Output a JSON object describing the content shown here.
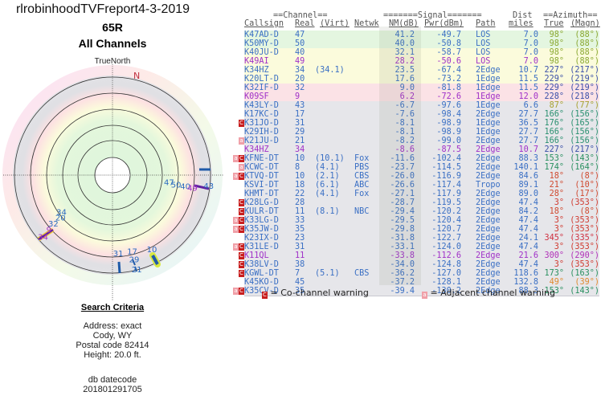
{
  "report": {
    "title": "rlrobinhoodTVFreport4-3-2019",
    "antenna_id": "65R",
    "subtitle": "All Channels",
    "north_label": "TrueNorth",
    "compass_n": "N"
  },
  "criteria": {
    "heading": "Search Criteria",
    "lines": [
      "Address: exact",
      "Cody, WY",
      "Postal code 82414",
      "Height: 20.0 ft."
    ],
    "db_label": "db datecode",
    "db_value": "201801291705"
  },
  "table": {
    "group_headers": {
      "channel": "==Channel==",
      "signal": "=======Signal=======",
      "dist": "Dist",
      "azimuth": "==Azimuth=="
    },
    "columns": [
      "Callsign",
      "Real",
      "(Virt)",
      "Netwk",
      "NM(dB)",
      "Pwr(dBm)",
      "Path",
      "miles",
      "True",
      "(Magn)"
    ],
    "rows": [
      {
        "callsign": "K47AD-D",
        "real": "47",
        "virt": "",
        "netwk": "",
        "nm": "41.2",
        "pwr": "-49.7",
        "path": "LOS",
        "dist": "7.0",
        "true": "98°",
        "magn": "(88°)",
        "band": "green",
        "tc": "#3a6fc4",
        "ac": "#8aa832",
        "warn": ""
      },
      {
        "callsign": "K50MY-D",
        "real": "50",
        "virt": "",
        "netwk": "",
        "nm": "40.0",
        "pwr": "-50.8",
        "path": "LOS",
        "dist": "7.0",
        "true": "98°",
        "magn": "(88°)",
        "band": "green",
        "tc": "#3a6fc4",
        "ac": "#8aa832",
        "warn": ""
      },
      {
        "callsign": "K40JU-D",
        "real": "40",
        "virt": "",
        "netwk": "",
        "nm": "32.1",
        "pwr": "-58.7",
        "path": "LOS",
        "dist": "7.0",
        "true": "98°",
        "magn": "(88°)",
        "band": "yellow",
        "tc": "#3a6fc4",
        "ac": "#8aa832",
        "warn": ""
      },
      {
        "callsign": "K49AI",
        "real": "49",
        "virt": "",
        "netwk": "",
        "nm": "28.2",
        "pwr": "-50.6",
        "path": "LOS",
        "dist": "7.0",
        "true": "98°",
        "magn": "(88°)",
        "band": "yellow",
        "tc": "#a030c8",
        "ac": "#8aa832",
        "warn": ""
      },
      {
        "callsign": "K34HZ",
        "real": "34",
        "virt": "(34.1)",
        "netwk": "",
        "nm": "23.5",
        "pwr": "-67.4",
        "path": "2Edge",
        "dist": "10.7",
        "true": "227°",
        "magn": "(217°)",
        "band": "yellow",
        "tc": "#3a6fc4",
        "ac": "#3a4fa8",
        "warn": ""
      },
      {
        "callsign": "K20LT-D",
        "real": "20",
        "virt": "",
        "netwk": "",
        "nm": "17.6",
        "pwr": "-73.2",
        "path": "1Edge",
        "dist": "11.5",
        "true": "229°",
        "magn": "(219°)",
        "band": "yellow",
        "tc": "#3a6fc4",
        "ac": "#3a4fa8",
        "warn": ""
      },
      {
        "callsign": "K32IF-D",
        "real": "32",
        "virt": "",
        "netwk": "",
        "nm": "9.0",
        "pwr": "-81.8",
        "path": "1Edge",
        "dist": "11.5",
        "true": "229°",
        "magn": "(219°)",
        "band": "pink",
        "tc": "#3a6fc4",
        "ac": "#3a4fa8",
        "warn": ""
      },
      {
        "callsign": "K09SF",
        "real": "9",
        "virt": "",
        "netwk": "",
        "nm": "6.2",
        "pwr": "-72.6",
        "path": "1Edge",
        "dist": "12.0",
        "true": "228°",
        "magn": "(218°)",
        "band": "pink",
        "tc": "#a030c8",
        "ac": "#3a4fa8",
        "warn": ""
      },
      {
        "callsign": "K43LY-D",
        "real": "43",
        "virt": "",
        "netwk": "",
        "nm": "-6.7",
        "pwr": "-97.6",
        "path": "1Edge",
        "dist": "6.6",
        "true": "87°",
        "magn": "(77°)",
        "band": "gray",
        "tc": "#3a6fc4",
        "ac": "#a8a030",
        "warn": ""
      },
      {
        "callsign": "K17KC-D",
        "real": "17",
        "virt": "",
        "netwk": "",
        "nm": "-7.6",
        "pwr": "-98.4",
        "path": "2Edge",
        "dist": "27.7",
        "true": "166°",
        "magn": "(156°)",
        "band": "gray",
        "tc": "#3a6fc4",
        "ac": "#2a9070",
        "warn": ""
      },
      {
        "callsign": "K31JO-D",
        "real": "31",
        "virt": "",
        "netwk": "",
        "nm": "-8.1",
        "pwr": "-98.9",
        "path": "1Edge",
        "dist": "36.5",
        "true": "176°",
        "magn": "(165°)",
        "band": "gray",
        "tc": "#3a6fc4",
        "ac": "#2a9070",
        "warn": "c"
      },
      {
        "callsign": "K29IH-D",
        "real": "29",
        "virt": "",
        "netwk": "",
        "nm": "-8.1",
        "pwr": "-98.9",
        "path": "1Edge",
        "dist": "27.7",
        "true": "166°",
        "magn": "(156°)",
        "band": "gray",
        "tc": "#3a6fc4",
        "ac": "#2a9070",
        "warn": ""
      },
      {
        "callsign": "K21JU-D",
        "real": "21",
        "virt": "",
        "netwk": "",
        "nm": "-8.2",
        "pwr": "-99.0",
        "path": "2Edge",
        "dist": "27.7",
        "true": "166°",
        "magn": "(156°)",
        "band": "gray",
        "tc": "#3a6fc4",
        "ac": "#2a9070",
        "warn": "a"
      },
      {
        "callsign": "K34HZ",
        "real": "34",
        "virt": "",
        "netwk": "",
        "nm": "-8.6",
        "pwr": "-87.5",
        "path": "2Edge",
        "dist": "10.7",
        "true": "227°",
        "magn": "(217°)",
        "band": "gray",
        "tc": "#a030c8",
        "ac": "#3a4fa8",
        "warn": ""
      },
      {
        "callsign": "KFNE-DT",
        "real": "10",
        "virt": "(10.1)",
        "netwk": "Fox",
        "nm": "-11.6",
        "pwr": "-102.4",
        "path": "2Edge",
        "dist": "88.3",
        "true": "153°",
        "magn": "(143°)",
        "band": "gray",
        "tc": "#3a6fc4",
        "ac": "#2a9060",
        "warn": "ac"
      },
      {
        "callsign": "KCWC-DT",
        "real": "8",
        "virt": "(4.1)",
        "netwk": "PBS",
        "nm": "-23.7",
        "pwr": "-114.5",
        "path": "2Edge",
        "dist": "140.1",
        "true": "174°",
        "magn": "(164°)",
        "band": "gray",
        "tc": "#3a6fc4",
        "ac": "#2a9060",
        "warn": "a"
      },
      {
        "callsign": "KTVQ-DT",
        "real": "10",
        "virt": "(2.1)",
        "netwk": "CBS",
        "nm": "-26.0",
        "pwr": "-116.9",
        "path": "2Edge",
        "dist": "84.6",
        "true": "18°",
        "magn": "(8°)",
        "band": "gray",
        "tc": "#3a6fc4",
        "ac": "#d04a30",
        "warn": "ac"
      },
      {
        "callsign": "KSVI-DT",
        "real": "18",
        "virt": "(6.1)",
        "netwk": "ABC",
        "nm": "-26.6",
        "pwr": "-117.4",
        "path": "Tropo",
        "dist": "89.1",
        "true": "21°",
        "magn": "(10°)",
        "band": "gray",
        "tc": "#3a6fc4",
        "ac": "#d04a30",
        "warn": ""
      },
      {
        "callsign": "KHMT-DT",
        "real": "22",
        "virt": "(4.1)",
        "netwk": "Fox",
        "nm": "-27.1",
        "pwr": "-117.9",
        "path": "2Edge",
        "dist": "89.0",
        "true": "28°",
        "magn": "(17°)",
        "band": "gray",
        "tc": "#3a6fc4",
        "ac": "#d04a30",
        "warn": ""
      },
      {
        "callsign": "K28LG-D",
        "real": "28",
        "virt": "",
        "netwk": "",
        "nm": "-28.7",
        "pwr": "-119.5",
        "path": "2Edge",
        "dist": "47.4",
        "true": "3°",
        "magn": "(353°)",
        "band": "gray",
        "tc": "#3a6fc4",
        "ac": "#d03a30",
        "warn": "c"
      },
      {
        "callsign": "KULR-DT",
        "real": "11",
        "virt": "(8.1)",
        "netwk": "NBC",
        "nm": "-29.4",
        "pwr": "-120.2",
        "path": "2Edge",
        "dist": "84.2",
        "true": "18°",
        "magn": "(8°)",
        "band": "gray",
        "tc": "#3a6fc4",
        "ac": "#d04a30",
        "warn": "c"
      },
      {
        "callsign": "K33LG-D",
        "real": "33",
        "virt": "",
        "netwk": "",
        "nm": "-29.5",
        "pwr": "-120.4",
        "path": "2Edge",
        "dist": "47.4",
        "true": "3°",
        "magn": "(353°)",
        "band": "gray",
        "tc": "#3a6fc4",
        "ac": "#d03a30",
        "warn": "ac"
      },
      {
        "callsign": "K35JW-D",
        "real": "35",
        "virt": "",
        "netwk": "",
        "nm": "-29.8",
        "pwr": "-120.7",
        "path": "2Edge",
        "dist": "47.4",
        "true": "3°",
        "magn": "(353°)",
        "band": "gray",
        "tc": "#3a6fc4",
        "ac": "#d03a30",
        "warn": "ac"
      },
      {
        "callsign": "K23IX-D",
        "real": "23",
        "virt": "",
        "netwk": "",
        "nm": "-31.8",
        "pwr": "-122.7",
        "path": "2Edge",
        "dist": "24.1",
        "true": "345°",
        "magn": "(335°)",
        "band": "gray",
        "tc": "#3a6fc4",
        "ac": "#d03040",
        "warn": ""
      },
      {
        "callsign": "K31LE-D",
        "real": "31",
        "virt": "",
        "netwk": "",
        "nm": "-33.1",
        "pwr": "-124.0",
        "path": "2Edge",
        "dist": "47.4",
        "true": "3°",
        "magn": "(353°)",
        "band": "gray",
        "tc": "#3a6fc4",
        "ac": "#d03a30",
        "warn": "ac"
      },
      {
        "callsign": "K11QL",
        "real": "11",
        "virt": "",
        "netwk": "",
        "nm": "-33.8",
        "pwr": "-112.6",
        "path": "2Edge",
        "dist": "21.6",
        "true": "300°",
        "magn": "(290°)",
        "band": "gray",
        "tc": "#a030c8",
        "ac": "#b030b8",
        "warn": "c"
      },
      {
        "callsign": "K38LV-D",
        "real": "38",
        "virt": "",
        "netwk": "",
        "nm": "-34.0",
        "pwr": "-124.8",
        "path": "2Edge",
        "dist": "47.4",
        "true": "3°",
        "magn": "(353°)",
        "band": "gray",
        "tc": "#3a6fc4",
        "ac": "#d03a30",
        "warn": "c"
      },
      {
        "callsign": "KGWL-DT",
        "real": "7",
        "virt": "(5.1)",
        "netwk": "CBS",
        "nm": "-36.2",
        "pwr": "-127.0",
        "path": "2Edge",
        "dist": "118.6",
        "true": "173°",
        "magn": "(163°)",
        "band": "gray",
        "tc": "#3a6fc4",
        "ac": "#2a9060",
        "warn": "c"
      },
      {
        "callsign": "K45KO-D",
        "real": "45",
        "virt": "",
        "netwk": "",
        "nm": "-37.2",
        "pwr": "-128.1",
        "path": "2Edge",
        "dist": "132.8",
        "true": "49°",
        "magn": "(39°)",
        "band": "gray",
        "tc": "#3a6fc4",
        "ac": "#e08a30",
        "warn": ""
      },
      {
        "callsign": "K35CV-D",
        "real": "35",
        "virt": "",
        "netwk": "",
        "nm": "-39.4",
        "pwr": "-130.2",
        "path": "2Edge",
        "dist": "88.3",
        "true": "153°",
        "magn": "(143°)",
        "band": "gray",
        "tc": "#3a6fc4",
        "ac": "#2a9060",
        "warn": "ac"
      }
    ]
  },
  "legend": {
    "co_channel_icon": "C",
    "co_channel": "= Co-channel warning",
    "adjacent_icon": "a",
    "adjacent": "= Adjacent channel warning"
  },
  "band_colors": {
    "green": "#e4f6e0",
    "yellow": "#fbfbdc",
    "pink": "#fbe2e6",
    "gray": "#e6e6ea"
  },
  "polar_plot": {
    "labels": [
      {
        "text": "43",
        "az": 98,
        "r": 0.93,
        "color": "#2a6ac0"
      },
      {
        "text": "47",
        "az": 100,
        "r": 0.55,
        "color": "#2a6ac0"
      },
      {
        "text": "50",
        "az": 101,
        "r": 0.62,
        "color": "#2a6ac0"
      },
      {
        "text": "40",
        "az": 101,
        "r": 0.71,
        "color": "#2a6ac0"
      },
      {
        "text": "49",
        "az": 101,
        "r": 0.78,
        "color": "#a030c8"
      },
      {
        "text": "34",
        "az": 232,
        "r": 0.62,
        "color": "#2a6ac0"
      },
      {
        "text": "20",
        "az": 229,
        "r": 0.66,
        "color": "#2a6ac0"
      },
      {
        "text": "32",
        "az": 229,
        "r": 0.75,
        "color": "#2a6ac0"
      },
      {
        "text": "9",
        "az": 228,
        "r": 0.82,
        "color": "#a030c8"
      },
      {
        "text": "34",
        "az": 227,
        "r": 0.91,
        "color": "#a030c8"
      },
      {
        "text": "31",
        "az": 176,
        "r": 0.78,
        "color": "#2a6ac0"
      },
      {
        "text": "17",
        "az": 166,
        "r": 0.78,
        "color": "#2a6ac0"
      },
      {
        "text": "29",
        "az": 166,
        "r": 0.86,
        "color": "#2a6ac0"
      },
      {
        "text": "21",
        "az": 166,
        "r": 0.96,
        "color": "#2a6ac0"
      },
      {
        "text": "10",
        "az": 153,
        "r": 0.83,
        "color": "#2a6ac0"
      }
    ]
  }
}
